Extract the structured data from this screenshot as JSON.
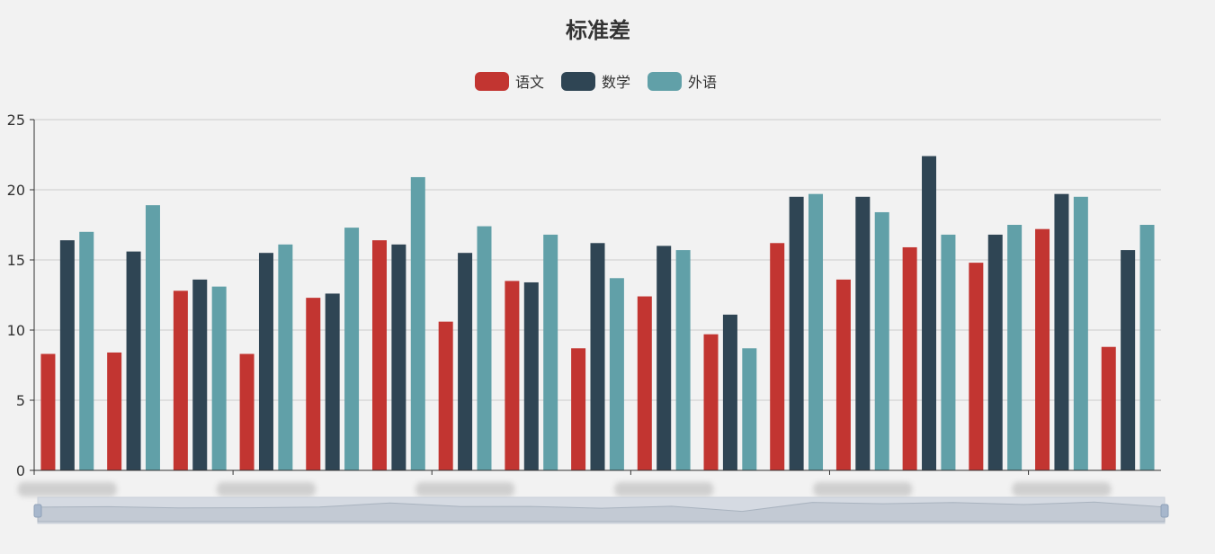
{
  "chart_data": {
    "type": "bar",
    "title": "标准差",
    "legend": {
      "position": "top-center"
    },
    "ylim": [
      0,
      25
    ],
    "yticks": [
      0,
      5,
      10,
      15,
      20,
      25
    ],
    "grid": true,
    "categories": [
      "",
      "",
      "",
      "",
      "",
      "",
      "",
      "",
      "",
      "",
      "",
      "",
      "",
      "",
      "",
      "",
      ""
    ],
    "series": [
      {
        "name": "语文",
        "color": "#c23531",
        "values": [
          8.3,
          8.4,
          12.8,
          8.3,
          12.3,
          16.4,
          10.6,
          13.5,
          8.7,
          12.4,
          9.7,
          16.2,
          13.6,
          15.9,
          14.8,
          17.2,
          8.8
        ]
      },
      {
        "name": "数学",
        "color": "#2f4554",
        "values": [
          16.4,
          15.6,
          13.6,
          15.5,
          12.6,
          16.1,
          15.5,
          13.4,
          16.2,
          16.0,
          11.1,
          19.5,
          19.5,
          22.4,
          16.8,
          19.7,
          15.7
        ]
      },
      {
        "name": "外语",
        "color": "#61a0a8",
        "values": [
          17.0,
          18.9,
          13.1,
          16.1,
          17.3,
          20.9,
          17.4,
          16.8,
          13.7,
          15.7,
          8.7,
          19.7,
          18.4,
          16.8,
          17.5,
          19.5,
          17.5
        ]
      }
    ],
    "datazoom": {
      "range": [
        0,
        100
      ]
    }
  }
}
